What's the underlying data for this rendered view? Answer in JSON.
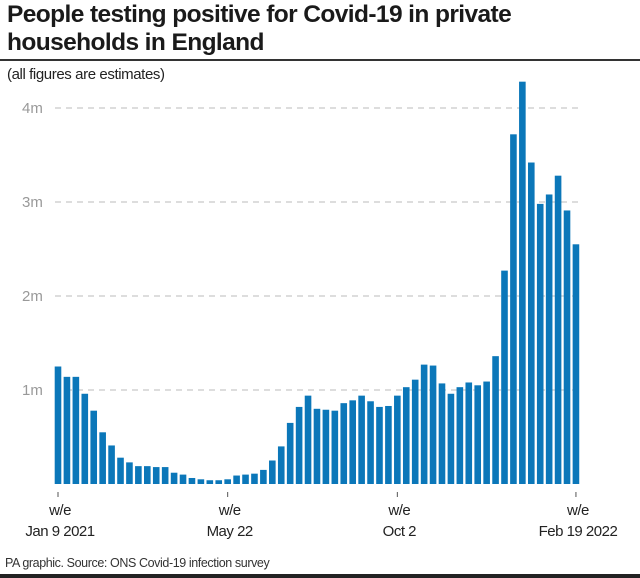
{
  "title": "People testing positive for Covid-19 in private households in England",
  "subtitle": "(all figures are estimates)",
  "source": "PA graphic. Source: ONS Covid-19 infection survey",
  "colors": {
    "bar": "#0b77b9",
    "grid": "#bbbbbb",
    "axis_label": "#999999"
  },
  "chart_data": {
    "type": "bar",
    "title": "People testing positive for Covid-19 in private households in England",
    "subtitle": "(all figures are estimates)",
    "xlabel": "",
    "ylabel": "",
    "ylim": [
      0,
      4300000
    ],
    "grid": true,
    "y_ticks": [
      {
        "value": 1000000,
        "label": "1m"
      },
      {
        "value": 2000000,
        "label": "2m"
      },
      {
        "value": 3000000,
        "label": "3m"
      },
      {
        "value": 4000000,
        "label": "4m"
      }
    ],
    "x_ticks": [
      {
        "index": 0,
        "line1": "w/e",
        "line2": "Jan 9 2021"
      },
      {
        "index": 19,
        "line1": "w/e",
        "line2": "May 22"
      },
      {
        "index": 38,
        "line1": "w/e",
        "line2": "Oct 2"
      },
      {
        "index": 58,
        "line1": "w/e",
        "line2": "Feb 19 2022"
      }
    ],
    "values": [
      1250000,
      1140000,
      1140000,
      960000,
      780000,
      550000,
      410000,
      280000,
      230000,
      190000,
      190000,
      180000,
      180000,
      120000,
      100000,
      64000,
      50000,
      40000,
      40000,
      50000,
      90000,
      100000,
      110000,
      150000,
      250000,
      400000,
      650000,
      820000,
      940000,
      800000,
      790000,
      780000,
      860000,
      890000,
      940000,
      880000,
      820000,
      830000,
      940000,
      1030000,
      1110000,
      1270000,
      1260000,
      1070000,
      960000,
      1030000,
      1080000,
      1050000,
      1090000,
      1360000,
      2270000,
      3720000,
      4280000,
      3420000,
      2980000,
      3080000,
      3280000,
      2910000,
      2550000
    ]
  }
}
